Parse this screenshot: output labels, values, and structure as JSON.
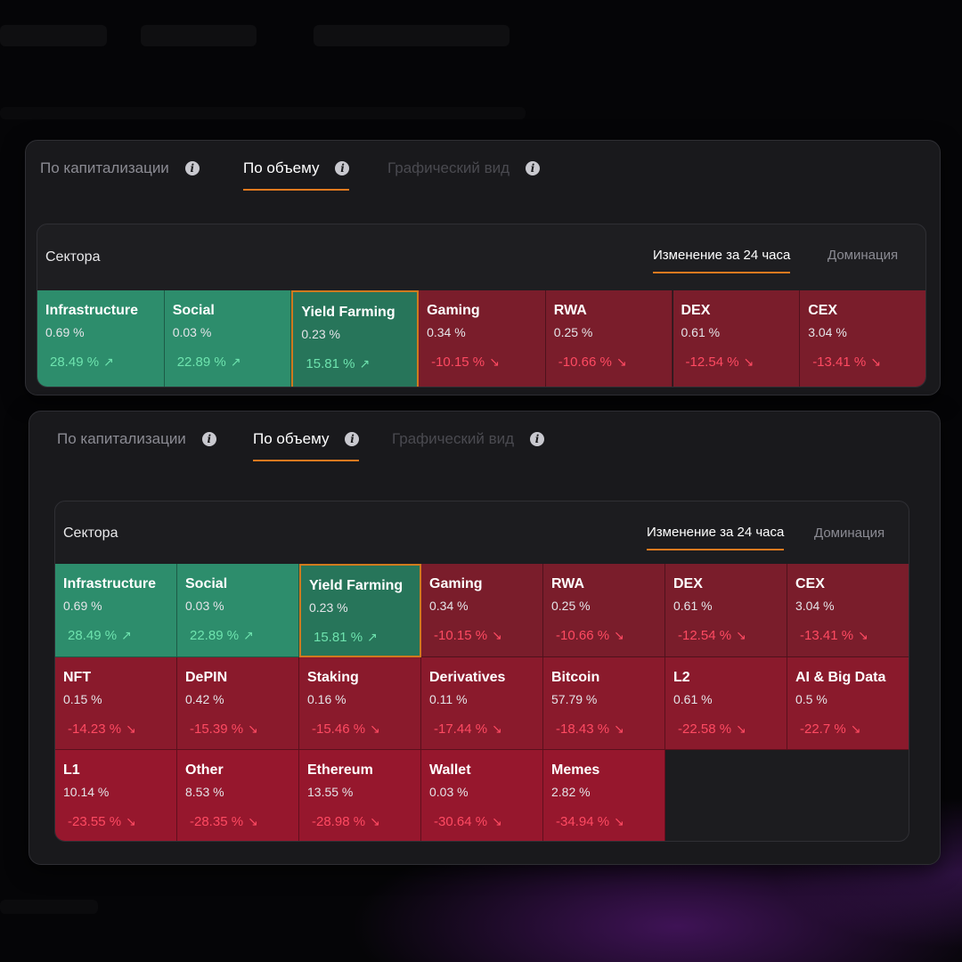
{
  "colors": {
    "accent": "#e0791f",
    "up_tile": "#2d8d6c",
    "down_tile": "#7a1d2b",
    "up_text": "#6ee3ae",
    "down_text": "#ff4a62"
  },
  "tabs": [
    {
      "label": "По капитализации",
      "icon": "info-icon",
      "state": "normal"
    },
    {
      "label": "По объему",
      "icon": "info-icon",
      "state": "active"
    },
    {
      "label": "Графический вид",
      "icon": "info-icon",
      "state": "disabled"
    }
  ],
  "card": {
    "title": "Сектора",
    "segments": [
      {
        "label": "Изменение за 24 часа",
        "state": "active"
      },
      {
        "label": "Доминация",
        "state": "inactive"
      }
    ]
  },
  "icons": {
    "up_arrow": "arrow-up-right-icon",
    "down_arrow": "arrow-down-right-icon"
  },
  "sectors": [
    {
      "name": "Infrastructure",
      "share": "0.69 %",
      "change": "28.49 %",
      "dir": "up"
    },
    {
      "name": "Social",
      "share": "0.03 %",
      "change": "22.89 %",
      "dir": "up"
    },
    {
      "name": "Yield Farming",
      "share": "0.23 %",
      "change": "15.81 %",
      "dir": "up",
      "selected": true
    },
    {
      "name": "Gaming",
      "share": "0.34 %",
      "change": "-10.15 %",
      "dir": "down"
    },
    {
      "name": "RWA",
      "share": "0.25 %",
      "change": "-10.66 %",
      "dir": "down"
    },
    {
      "name": "DEX",
      "share": "0.61 %",
      "change": "-12.54 %",
      "dir": "down"
    },
    {
      "name": "CEX",
      "share": "3.04 %",
      "change": "-13.41 %",
      "dir": "down"
    },
    {
      "name": "NFT",
      "share": "0.15 %",
      "change": "-14.23 %",
      "dir": "down"
    },
    {
      "name": "DePIN",
      "share": "0.42 %",
      "change": "-15.39 %",
      "dir": "down"
    },
    {
      "name": "Staking",
      "share": "0.16 %",
      "change": "-15.46 %",
      "dir": "down"
    },
    {
      "name": "Derivatives",
      "share": "0.11 %",
      "change": "-17.44 %",
      "dir": "down"
    },
    {
      "name": "Bitcoin",
      "share": "57.79 %",
      "change": "-18.43 %",
      "dir": "down"
    },
    {
      "name": "L2",
      "share": "0.61 %",
      "change": "-22.58 %",
      "dir": "down"
    },
    {
      "name": "AI & Big Data",
      "share": "0.5 %",
      "change": "-22.7 %",
      "dir": "down"
    },
    {
      "name": "L1",
      "share": "10.14 %",
      "change": "-23.55 %",
      "dir": "down"
    },
    {
      "name": "Other",
      "share": "8.53 %",
      "change": "-28.35 %",
      "dir": "down"
    },
    {
      "name": "Ethereum",
      "share": "13.55 %",
      "change": "-28.98 %",
      "dir": "down"
    },
    {
      "name": "Wallet",
      "share": "0.03 %",
      "change": "-30.64 %",
      "dir": "down"
    },
    {
      "name": "Memes",
      "share": "2.82 %",
      "change": "-34.94 %",
      "dir": "down"
    }
  ]
}
